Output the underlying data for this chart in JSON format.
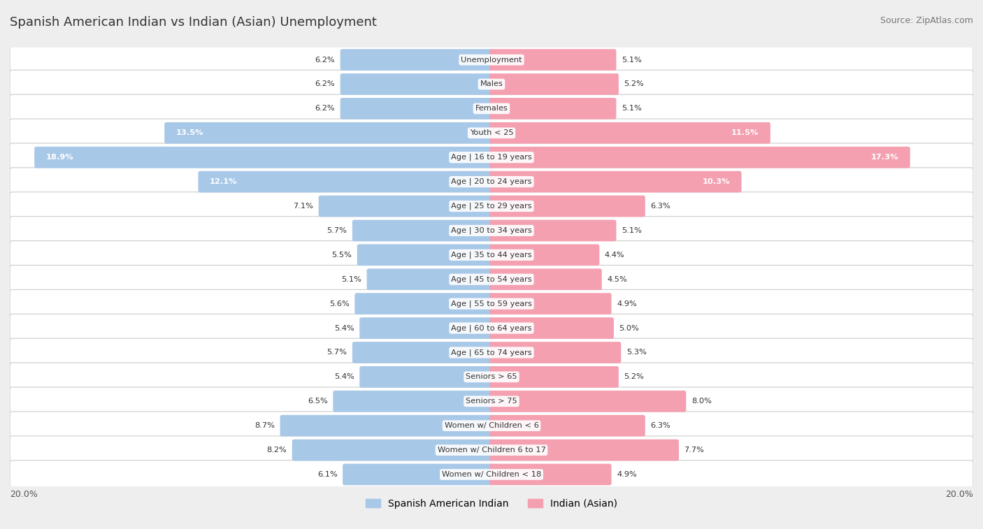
{
  "title": "Spanish American Indian vs Indian (Asian) Unemployment",
  "source": "Source: ZipAtlas.com",
  "categories": [
    "Unemployment",
    "Males",
    "Females",
    "Youth < 25",
    "Age | 16 to 19 years",
    "Age | 20 to 24 years",
    "Age | 25 to 29 years",
    "Age | 30 to 34 years",
    "Age | 35 to 44 years",
    "Age | 45 to 54 years",
    "Age | 55 to 59 years",
    "Age | 60 to 64 years",
    "Age | 65 to 74 years",
    "Seniors > 65",
    "Seniors > 75",
    "Women w/ Children < 6",
    "Women w/ Children 6 to 17",
    "Women w/ Children < 18"
  ],
  "left_values": [
    6.2,
    6.2,
    6.2,
    13.5,
    18.9,
    12.1,
    7.1,
    5.7,
    5.5,
    5.1,
    5.6,
    5.4,
    5.7,
    5.4,
    6.5,
    8.7,
    8.2,
    6.1
  ],
  "right_values": [
    5.1,
    5.2,
    5.1,
    11.5,
    17.3,
    10.3,
    6.3,
    5.1,
    4.4,
    4.5,
    4.9,
    5.0,
    5.3,
    5.2,
    8.0,
    6.3,
    7.7,
    4.9
  ],
  "left_color": "#a8c8e8",
  "right_color": "#f4a0b0",
  "left_label": "Spanish American Indian",
  "right_label": "Indian (Asian)",
  "max_val": 20.0,
  "bg_color": "#eeeeee",
  "row_bg_color": "#ffffff",
  "axis_label_left": "20.0%",
  "axis_label_right": "20.0%"
}
